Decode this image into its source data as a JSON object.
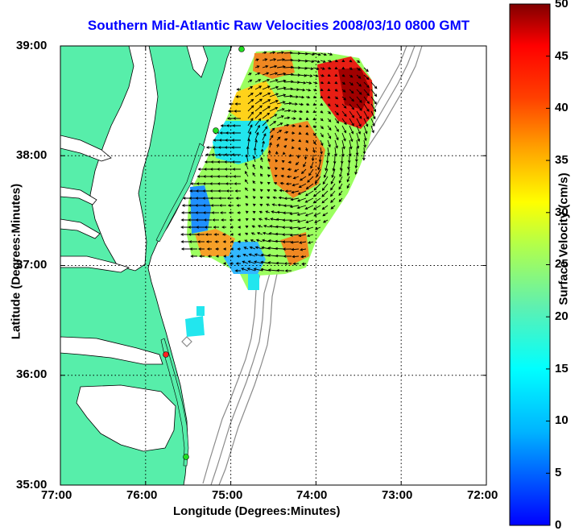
{
  "title": "Southern Mid-Atlantic Raw Velocities 2008/03/10 0800 GMT",
  "x_axis": {
    "label": "Longitude (Degrees:Minutes)",
    "ticks": [
      "77:00",
      "76:00",
      "75:00",
      "74:00",
      "73:00",
      "72:00"
    ]
  },
  "y_axis": {
    "label": "Latitude (Degrees:Minutes)",
    "ticks": [
      "39:00",
      "38:00",
      "37:00",
      "36:00",
      "35:00"
    ]
  },
  "colorbar": {
    "label": "Surface Velocity (cm/s)",
    "min": 0,
    "max": 50,
    "ticks": [
      "0",
      "5",
      "10",
      "15",
      "20",
      "25",
      "30",
      "35",
      "40",
      "45",
      "50"
    ]
  },
  "colors": {
    "land": "#57eeaa",
    "title": "#0000ff",
    "bathymetry": "#8a8a8a",
    "station": "#22dd22",
    "station_highlight": "#ff2222"
  },
  "map_extent": {
    "lon_west": -77,
    "lon_east": -72,
    "lat_south": 35,
    "lat_north": 39
  }
}
